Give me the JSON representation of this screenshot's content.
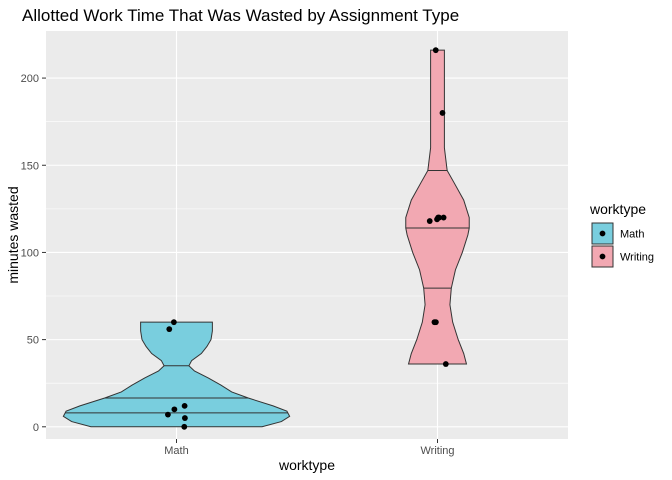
{
  "chart_data": {
    "type": "violin",
    "title": "Allotted Work Time That Was Wasted by Assignment Type",
    "xlabel": "worktype",
    "ylabel": "minutes wasted",
    "categories": [
      "Math",
      "Writing"
    ],
    "ylim": [
      -7,
      227
    ],
    "yticks": [
      0,
      50,
      100,
      150,
      200
    ],
    "yticks_labels": [
      "0",
      "50",
      "100",
      "150",
      "200"
    ],
    "grid": true,
    "draw_quantiles": [
      0.25,
      0.5,
      0.75
    ],
    "legend": {
      "title": "worktype",
      "position": "right",
      "entries": [
        "Math",
        "Writing"
      ]
    },
    "colors": {
      "Math": "#79CEDE",
      "Writing": "#F2A8B2",
      "panel": "#EBEBEB",
      "grid": "#FFFFFF",
      "outline": "#333333",
      "point": "#000000"
    },
    "series": [
      {
        "name": "Math",
        "quantiles": [
          8,
          16.5,
          35
        ],
        "points": [
          0,
          5,
          7,
          10,
          12,
          56,
          60
        ],
        "density": [
          [
            0,
            0.62
          ],
          [
            3,
            0.76
          ],
          [
            6,
            0.82
          ],
          [
            9,
            0.8
          ],
          [
            12,
            0.7
          ],
          [
            16.5,
            0.52
          ],
          [
            20,
            0.4
          ],
          [
            24,
            0.32
          ],
          [
            28,
            0.23
          ],
          [
            32,
            0.13
          ],
          [
            35,
            0.09
          ],
          [
            38,
            0.11
          ],
          [
            42,
            0.18
          ],
          [
            46,
            0.22
          ],
          [
            50,
            0.25
          ],
          [
            55,
            0.26
          ],
          [
            60,
            0.26
          ]
        ]
      },
      {
        "name": "Writing",
        "quantiles": [
          79.5,
          114,
          147
        ],
        "points": [
          36,
          60,
          60,
          118,
          119,
          120,
          120,
          120,
          180,
          216
        ],
        "density": [
          [
            36,
            0.21
          ],
          [
            42,
            0.19
          ],
          [
            50,
            0.15
          ],
          [
            60,
            0.11
          ],
          [
            70,
            0.09
          ],
          [
            79.5,
            0.1
          ],
          [
            90,
            0.13
          ],
          [
            100,
            0.18
          ],
          [
            110,
            0.22
          ],
          [
            114,
            0.23
          ],
          [
            120,
            0.23
          ],
          [
            130,
            0.19
          ],
          [
            140,
            0.12
          ],
          [
            147,
            0.07
          ],
          [
            160,
            0.05
          ],
          [
            175,
            0.05
          ],
          [
            190,
            0.05
          ],
          [
            205,
            0.05
          ],
          [
            216,
            0.05
          ]
        ]
      }
    ]
  }
}
